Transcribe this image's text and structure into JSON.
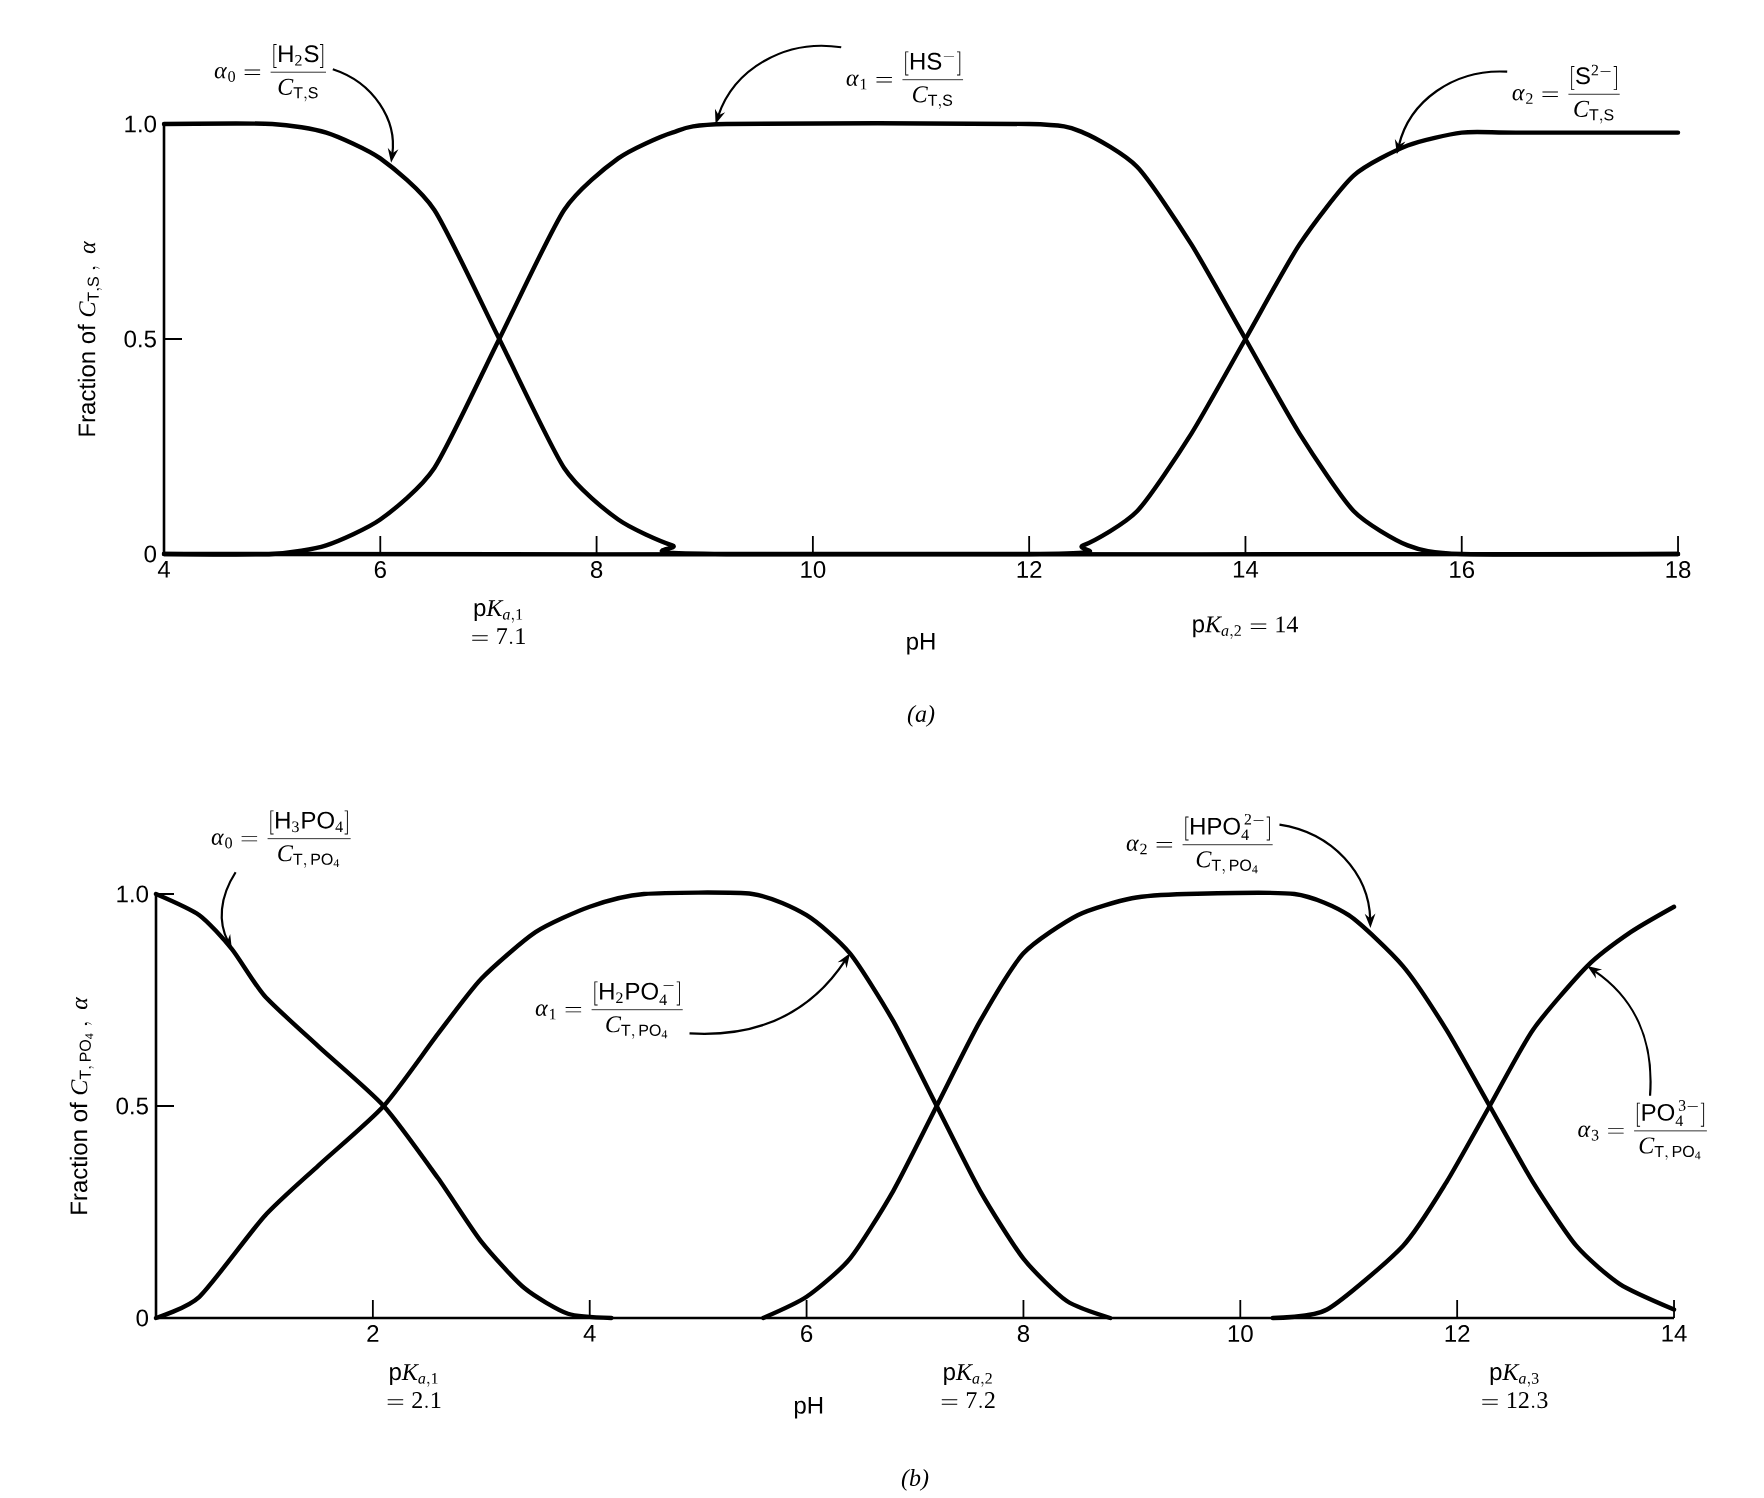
{
  "chart_data": [
    {
      "type": "line",
      "title": "(a)",
      "xlabel": "pH",
      "ylabel": "\\mathrm{Fraction\\ of}\\ C_{\\mathrm{T,S}}\\,,\\ \\alpha",
      "xlim": [
        4,
        18
      ],
      "xticks": [
        4,
        6,
        8,
        10,
        12,
        14,
        16,
        18
      ],
      "ylim": [
        0,
        1.0
      ],
      "yticks": [
        0,
        0.5,
        {
          "value": 1.0,
          "label": "1.0"
        }
      ],
      "series": [
        {
          "color": "#000000",
          "x": [
            4,
            5,
            5.5,
            6,
            6.5,
            7.1,
            7.7,
            8.2,
            8.7,
            9.2,
            18
          ],
          "values": [
            1,
            1,
            0.98,
            0.92,
            0.8,
            0.5,
            0.2,
            0.08,
            0.02,
            0,
            0
          ]
        },
        {
          "color": "#000000",
          "x": [
            4,
            5,
            5.5,
            6,
            6.5,
            7.1,
            7.7,
            8.2,
            8.7,
            9.2,
            12,
            12.5,
            13,
            13.5,
            14,
            14.5,
            15,
            15.5,
            16,
            18
          ],
          "values": [
            0,
            0,
            0.02,
            0.08,
            0.2,
            0.5,
            0.8,
            0.92,
            0.98,
            1,
            1,
            0.98,
            0.9,
            0.72,
            0.5,
            0.28,
            0.1,
            0.02,
            0,
            0
          ]
        },
        {
          "color": "#000000",
          "x": [
            4,
            12,
            12.5,
            13,
            13.5,
            14,
            14.5,
            15,
            15.5,
            16,
            16.5,
            18
          ],
          "values": [
            0,
            0,
            0.02,
            0.1,
            0.28,
            0.5,
            0.72,
            0.88,
            0.95,
            0.98,
            0.98,
            0.98
          ]
        }
      ],
      "annotations": [
        {
          "text": "\\alpha_0 = \\frac{[\\mathrm{H_2S}]}{C_{\\mathrm{T,S}}}",
          "x": 6.1,
          "y": 0.91
        },
        {
          "text": "\\alpha_1 = \\frac{[\\mathrm{HS^{-}}]}{C_{\\mathrm{T,S}}}",
          "x": 9.1,
          "y": 1.0
        },
        {
          "text": "\\alpha_2 = \\frac{[\\mathrm{S^{2-}}]}{C_{\\mathrm{T,S}}}",
          "x": 15.4,
          "y": 0.93
        },
        "\\begin{array}{c}\\mathrm{p}K_{a,1}\\\\ = 7.1\\end{array}",
        "\\mathrm{p}K_{a,2} = 14"
      ]
    },
    {
      "type": "line",
      "title": "(b)",
      "xlabel": "pH",
      "ylabel": "\\mathrm{Fraction\\ of}\\ C_{\\mathrm{T,\\,PO_4}}\\,,\\ \\alpha",
      "xlim": [
        0,
        14
      ],
      "xticks": [
        2,
        4,
        6,
        8,
        10,
        12,
        14
      ],
      "ylim": [
        0,
        1.0
      ],
      "yticks": [
        0,
        0.5,
        {
          "value": 1.0,
          "label": "1.0"
        }
      ],
      "series": [
        {
          "color": "#000000",
          "x": [
            0,
            0.4,
            0.7,
            1,
            1.5,
            2.1,
            2.6,
            3,
            3.4,
            3.8,
            4.2
          ],
          "values": [
            1,
            0.95,
            0.87,
            0.76,
            0.64,
            0.5,
            0.33,
            0.18,
            0.07,
            0.01,
            0
          ]
        },
        {
          "color": "#000000",
          "x": [
            0,
            0.4,
            1,
            1.5,
            2.1,
            2.6,
            3,
            3.5,
            4,
            4.5,
            5.5,
            6,
            6.4,
            6.8,
            7.2,
            7.6,
            8,
            8.4,
            8.8
          ],
          "values": [
            0,
            0.05,
            0.24,
            0.36,
            0.5,
            0.67,
            0.8,
            0.91,
            0.97,
            1,
            1,
            0.95,
            0.86,
            0.7,
            0.5,
            0.3,
            0.14,
            0.04,
            0
          ]
        },
        {
          "color": "#000000",
          "x": [
            5.6,
            6,
            6.4,
            6.8,
            7.2,
            7.6,
            8,
            8.5,
            9,
            9.5,
            10.5,
            11,
            11.5,
            11.9,
            12.3,
            12.7,
            13.1,
            13.5,
            14
          ],
          "values": [
            0,
            0.05,
            0.14,
            0.3,
            0.5,
            0.7,
            0.86,
            0.95,
            0.99,
            1,
            1,
            0.95,
            0.83,
            0.68,
            0.5,
            0.32,
            0.17,
            0.08,
            0.02
          ]
        },
        {
          "color": "#000000",
          "x": [
            10.3,
            10.8,
            11.5,
            11.9,
            12.3,
            12.7,
            13.2,
            13.6,
            14
          ],
          "values": [
            0,
            0.02,
            0.17,
            0.32,
            0.5,
            0.68,
            0.83,
            0.91,
            0.97
          ]
        }
      ],
      "annotations": [
        {
          "text": "\\alpha_0 = \\frac{[\\mathrm{H_3PO_4}]}{C_{\\mathrm{T,\\,PO_4}}}",
          "x": 0.7,
          "y": 0.87
        },
        {
          "text": "\\alpha_1 = \\frac{[\\mathrm{H_2PO_4^{\\,-}}]}{C_{\\mathrm{T,\\,PO_4}}}",
          "x": 6.4,
          "y": 0.86
        },
        {
          "text": "\\alpha_2 = \\frac{[\\mathrm{HPO_4^{\\,2-}}]}{C_{\\mathrm{T,\\,PO_4}}}",
          "x": 11.2,
          "y": 0.92
        },
        {
          "text": "\\alpha_3 = \\frac{[\\mathrm{PO_4^{\\,3-}}]}{C_{\\mathrm{T,\\,PO_4}}}",
          "x": 13.2,
          "y": 0.83
        },
        "\\begin{array}{c}\\mathrm{p}K_{a,1}\\\\ = 2.1\\end{array}",
        "\\begin{array}{c}\\mathrm{p}K_{a,2}\\\\ = 7.2\\end{array}",
        "\\begin{array}{c}\\mathrm{p}K_{a,3}\\\\ = 12.3\\end{array}"
      ]
    }
  ]
}
